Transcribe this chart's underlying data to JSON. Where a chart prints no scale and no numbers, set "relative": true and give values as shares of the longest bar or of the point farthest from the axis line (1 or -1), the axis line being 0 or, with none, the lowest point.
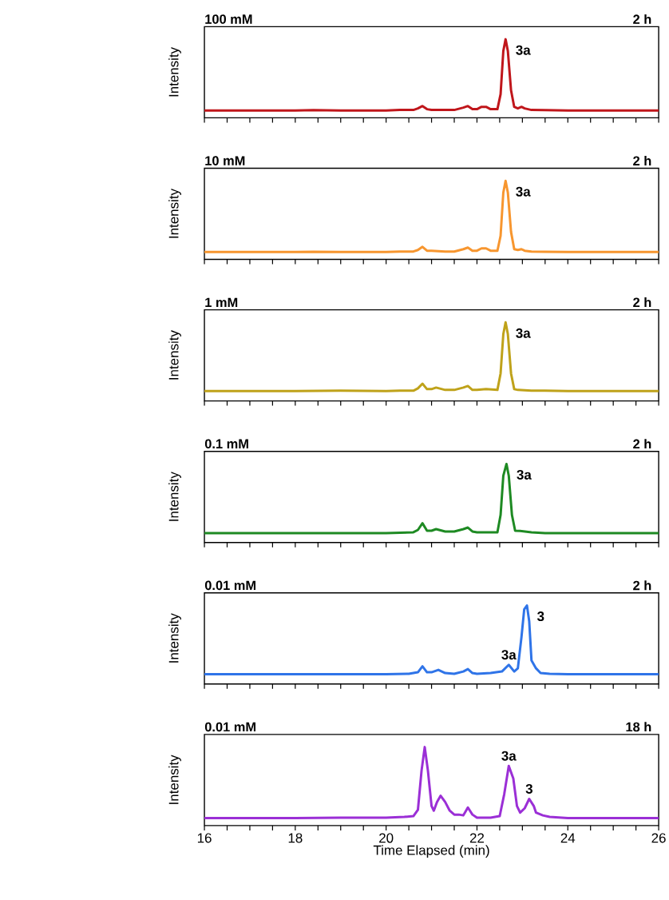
{
  "chart_data": [
    {
      "type": "line",
      "title": "100 mM",
      "subtitle": "2 h",
      "ylabel": "Intensity",
      "relative": true,
      "xlim": [
        16,
        26
      ],
      "xticks": [
        16,
        16.5,
        17,
        17.5,
        18,
        18.5,
        19,
        19.5,
        20,
        20.5,
        21,
        21.5,
        22,
        22.5,
        23,
        23.5,
        24,
        24.5,
        25,
        25.5,
        26
      ],
      "tick_labels": false,
      "series": [
        {
          "color": "#c0161b",
          "x": [
            16,
            18,
            18.4,
            19,
            20,
            20.3,
            20.6,
            20.7,
            20.8,
            20.9,
            21.0,
            21.3,
            21.5,
            21.7,
            21.8,
            21.9,
            22.0,
            22.1,
            22.2,
            22.3,
            22.45,
            22.52,
            22.58,
            22.63,
            22.68,
            22.75,
            22.82,
            22.9,
            22.98,
            23.05,
            23.2,
            23.5,
            24,
            26
          ],
          "values": [
            0.094,
            0.094,
            0.098,
            0.094,
            0.094,
            0.1,
            0.1,
            0.12,
            0.15,
            0.11,
            0.1,
            0.1,
            0.1,
            0.13,
            0.15,
            0.11,
            0.11,
            0.14,
            0.14,
            0.11,
            0.11,
            0.3,
            0.85,
            1,
            0.85,
            0.35,
            0.14,
            0.12,
            0.14,
            0.12,
            0.1,
            0.098,
            0.094,
            0.094
          ]
        }
      ],
      "annotations": [
        {
          "text": "3a",
          "x": 22.63,
          "y": 1
        }
      ]
    },
    {
      "type": "line",
      "title": "10 mM",
      "subtitle": "2 h",
      "ylabel": "Intensity",
      "relative": true,
      "xlim": [
        16,
        26
      ],
      "xticks": [
        16,
        16.5,
        17,
        17.5,
        18,
        18.5,
        19,
        19.5,
        20,
        20.5,
        21,
        21.5,
        22,
        22.5,
        23,
        23.5,
        24,
        24.5,
        25,
        25.5,
        26
      ],
      "tick_labels": false,
      "series": [
        {
          "color": "#f7962f",
          "x": [
            16,
            18,
            18.4,
            19,
            20,
            20.3,
            20.6,
            20.7,
            20.8,
            20.9,
            21.0,
            21.3,
            21.5,
            21.7,
            21.8,
            21.9,
            22.0,
            22.1,
            22.2,
            22.3,
            22.45,
            22.52,
            22.58,
            22.63,
            22.68,
            22.75,
            22.82,
            22.9,
            22.98,
            23.05,
            23.2,
            23.5,
            24,
            26
          ],
          "values": [
            0.094,
            0.094,
            0.098,
            0.094,
            0.094,
            0.1,
            0.1,
            0.12,
            0.16,
            0.11,
            0.11,
            0.1,
            0.1,
            0.13,
            0.15,
            0.11,
            0.11,
            0.14,
            0.14,
            0.11,
            0.11,
            0.3,
            0.85,
            1,
            0.85,
            0.35,
            0.13,
            0.12,
            0.13,
            0.11,
            0.1,
            0.098,
            0.094,
            0.094
          ]
        }
      ],
      "annotations": [
        {
          "text": "3a",
          "x": 22.63,
          "y": 1
        }
      ]
    },
    {
      "type": "line",
      "title": "1 mM",
      "subtitle": "2 h",
      "ylabel": "Intensity",
      "relative": true,
      "xlim": [
        16,
        26
      ],
      "xticks": [
        16,
        16.5,
        17,
        17.5,
        18,
        18.5,
        19,
        19.5,
        20,
        20.5,
        21,
        21.5,
        22,
        22.5,
        23,
        23.5,
        24,
        24.5,
        25,
        25.5,
        26
      ],
      "tick_labels": false,
      "series": [
        {
          "color": "#bfa21a",
          "x": [
            16,
            18,
            19,
            20,
            20.3,
            20.6,
            20.7,
            20.8,
            20.9,
            21.0,
            21.1,
            21.3,
            21.5,
            21.7,
            21.8,
            21.9,
            22.0,
            22.2,
            22.45,
            22.52,
            22.58,
            22.63,
            22.68,
            22.75,
            22.82,
            22.9,
            23.2,
            23.5,
            24,
            26
          ],
          "values": [
            0.125,
            0.125,
            0.13,
            0.125,
            0.13,
            0.13,
            0.16,
            0.22,
            0.15,
            0.15,
            0.17,
            0.14,
            0.14,
            0.17,
            0.19,
            0.14,
            0.14,
            0.15,
            0.14,
            0.35,
            0.85,
            1,
            0.85,
            0.35,
            0.15,
            0.14,
            0.13,
            0.13,
            0.125,
            0.125
          ]
        }
      ],
      "annotations": [
        {
          "text": "3a",
          "x": 22.63,
          "y": 1
        }
      ]
    },
    {
      "type": "line",
      "title": "0.1 mM",
      "subtitle": "2 h",
      "ylabel": "Intensity",
      "relative": true,
      "xlim": [
        16,
        26
      ],
      "xticks": [
        16,
        16.5,
        17,
        17.5,
        18,
        18.5,
        19,
        19.5,
        20,
        20.5,
        21,
        21.5,
        22,
        22.5,
        23,
        23.5,
        24,
        24.5,
        25,
        25.5,
        26
      ],
      "tick_labels": false,
      "series": [
        {
          "color": "#1e8a23",
          "x": [
            16,
            18,
            19,
            20,
            20.3,
            20.6,
            20.7,
            20.8,
            20.9,
            21.0,
            21.1,
            21.3,
            21.5,
            21.7,
            21.8,
            21.9,
            22.0,
            22.2,
            22.45,
            22.52,
            22.58,
            22.65,
            22.7,
            22.77,
            22.84,
            22.95,
            23.2,
            23.5,
            24,
            26
          ],
          "values": [
            0.12,
            0.12,
            0.12,
            0.12,
            0.125,
            0.13,
            0.16,
            0.245,
            0.15,
            0.15,
            0.17,
            0.14,
            0.14,
            0.17,
            0.19,
            0.14,
            0.13,
            0.13,
            0.13,
            0.35,
            0.85,
            1,
            0.85,
            0.35,
            0.15,
            0.146,
            0.13,
            0.12,
            0.12,
            0.12
          ]
        }
      ],
      "annotations": [
        {
          "text": "3a",
          "x": 22.65,
          "y": 1
        }
      ]
    },
    {
      "type": "line",
      "title": "0.01 mM",
      "subtitle": "2 h",
      "ylabel": "Intensity",
      "relative": true,
      "xlim": [
        16,
        26
      ],
      "xticks": [
        16,
        16.5,
        17,
        17.5,
        18,
        18.5,
        19,
        19.5,
        20,
        20.5,
        21,
        21.5,
        22,
        22.5,
        23,
        23.5,
        24,
        24.5,
        25,
        25.5,
        26
      ],
      "tick_labels": false,
      "series": [
        {
          "color": "#2f74e8",
          "x": [
            16,
            18,
            19,
            20,
            20.5,
            20.7,
            20.8,
            20.9,
            21.0,
            21.15,
            21.3,
            21.5,
            21.7,
            21.8,
            21.9,
            22.0,
            22.3,
            22.55,
            22.7,
            22.82,
            22.9,
            22.98,
            23.04,
            23.1,
            23.15,
            23.2,
            23.3,
            23.4,
            23.6,
            24,
            26
          ],
          "values": [
            0.126,
            0.126,
            0.126,
            0.126,
            0.13,
            0.15,
            0.225,
            0.15,
            0.15,
            0.18,
            0.14,
            0.13,
            0.16,
            0.19,
            0.14,
            0.13,
            0.14,
            0.16,
            0.245,
            0.16,
            0.2,
            0.6,
            0.95,
            1,
            0.8,
            0.3,
            0.2,
            0.14,
            0.13,
            0.126,
            0.126
          ]
        }
      ],
      "annotations": [
        {
          "text": "3",
          "x": 23.1,
          "y": 1
        },
        {
          "text": "3a",
          "x": 22.7,
          "y": 0.245
        }
      ]
    },
    {
      "type": "line",
      "title": "0.01 mM",
      "subtitle": "18 h",
      "ylabel": "Intensity",
      "xlabel": "Time Elapsed (min)",
      "relative": true,
      "xlim": [
        16,
        26
      ],
      "xticks": [
        16,
        {
          "value": 16.5,
          "label": null
        },
        {
          "value": 17,
          "label": null
        },
        {
          "value": 17.5,
          "label": null
        },
        18,
        {
          "value": 18.5,
          "label": null
        },
        {
          "value": 19,
          "label": null
        },
        {
          "value": 19.5,
          "label": null
        },
        20,
        {
          "value": 20.5,
          "label": null
        },
        {
          "value": 21,
          "label": null
        },
        {
          "value": 21.5,
          "label": null
        },
        22,
        {
          "value": 22.5,
          "label": null
        },
        {
          "value": 23,
          "label": null
        },
        {
          "value": 23.5,
          "label": null
        },
        24,
        {
          "value": 24.5,
          "label": null
        },
        {
          "value": 25,
          "label": null
        },
        {
          "value": 25.5,
          "label": null
        },
        26
      ],
      "tick_labels": "x",
      "series": [
        {
          "color": "#9b2fd6",
          "x": [
            16,
            18,
            19,
            20,
            20.4,
            20.6,
            20.7,
            20.78,
            20.85,
            20.92,
            21.0,
            21.05,
            21.12,
            21.2,
            21.3,
            21.4,
            21.5,
            21.6,
            21.7,
            21.8,
            21.9,
            22.0,
            22.3,
            22.5,
            22.6,
            22.7,
            22.8,
            22.88,
            22.95,
            23.05,
            23.15,
            23.25,
            23.3,
            23.45,
            23.6,
            24,
            26
          ],
          "values": [
            0.095,
            0.095,
            0.1,
            0.1,
            0.11,
            0.12,
            0.2,
            0.7,
            1,
            0.7,
            0.25,
            0.19,
            0.3,
            0.38,
            0.3,
            0.19,
            0.14,
            0.14,
            0.13,
            0.23,
            0.14,
            0.1,
            0.1,
            0.12,
            0.4,
            0.76,
            0.6,
            0.25,
            0.165,
            0.22,
            0.34,
            0.25,
            0.165,
            0.13,
            0.11,
            0.095,
            0.095
          ]
        }
      ],
      "annotations": [
        {
          "text": "3a",
          "x": 22.7,
          "y": 0.76
        },
        {
          "text": "3",
          "x": 23.15,
          "y": 0.34
        }
      ]
    }
  ]
}
